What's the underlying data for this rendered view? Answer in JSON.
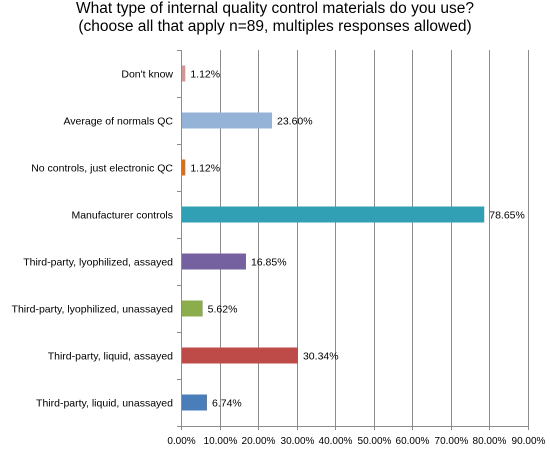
{
  "chart_data": {
    "type": "bar",
    "orientation": "horizontal",
    "title_lines": [
      "What type of internal quality control materials do you use?",
      "(choose all that apply n=89, multiples responses allowed)"
    ],
    "categories": [
      "Don't know",
      "Average of normals QC",
      "No controls, just electronic QC",
      "Manufacturer controls",
      "Third-party, lyophilized, assayed",
      "Third-party, lyophilized, unassayed",
      "Third-party, liquid, assayed",
      "Third-party, liquid, unassayed"
    ],
    "values": [
      1.12,
      23.6,
      1.12,
      78.65,
      16.85,
      5.62,
      30.34,
      6.74
    ],
    "value_labels": [
      "1.12%",
      "23.60%",
      "1.12%",
      "78.65%",
      "16.85%",
      "5.62%",
      "30.34%",
      "6.74%"
    ],
    "colors": [
      "#d99594",
      "#95b3d7",
      "#e46c0a",
      "#31a0b5",
      "#7560a0",
      "#8cad4c",
      "#be4b48",
      "#4a7ebb"
    ],
    "xlim": [
      0,
      90
    ],
    "x_ticks": [
      0,
      10,
      20,
      30,
      40,
      50,
      60,
      70,
      80,
      90
    ],
    "x_tick_labels": [
      "0.00%",
      "10.00%",
      "20.00%",
      "30.00%",
      "40.00%",
      "50.00%",
      "60.00%",
      "70.00%",
      "80.00%",
      "90.00%"
    ],
    "grid": true,
    "legend": "none"
  }
}
